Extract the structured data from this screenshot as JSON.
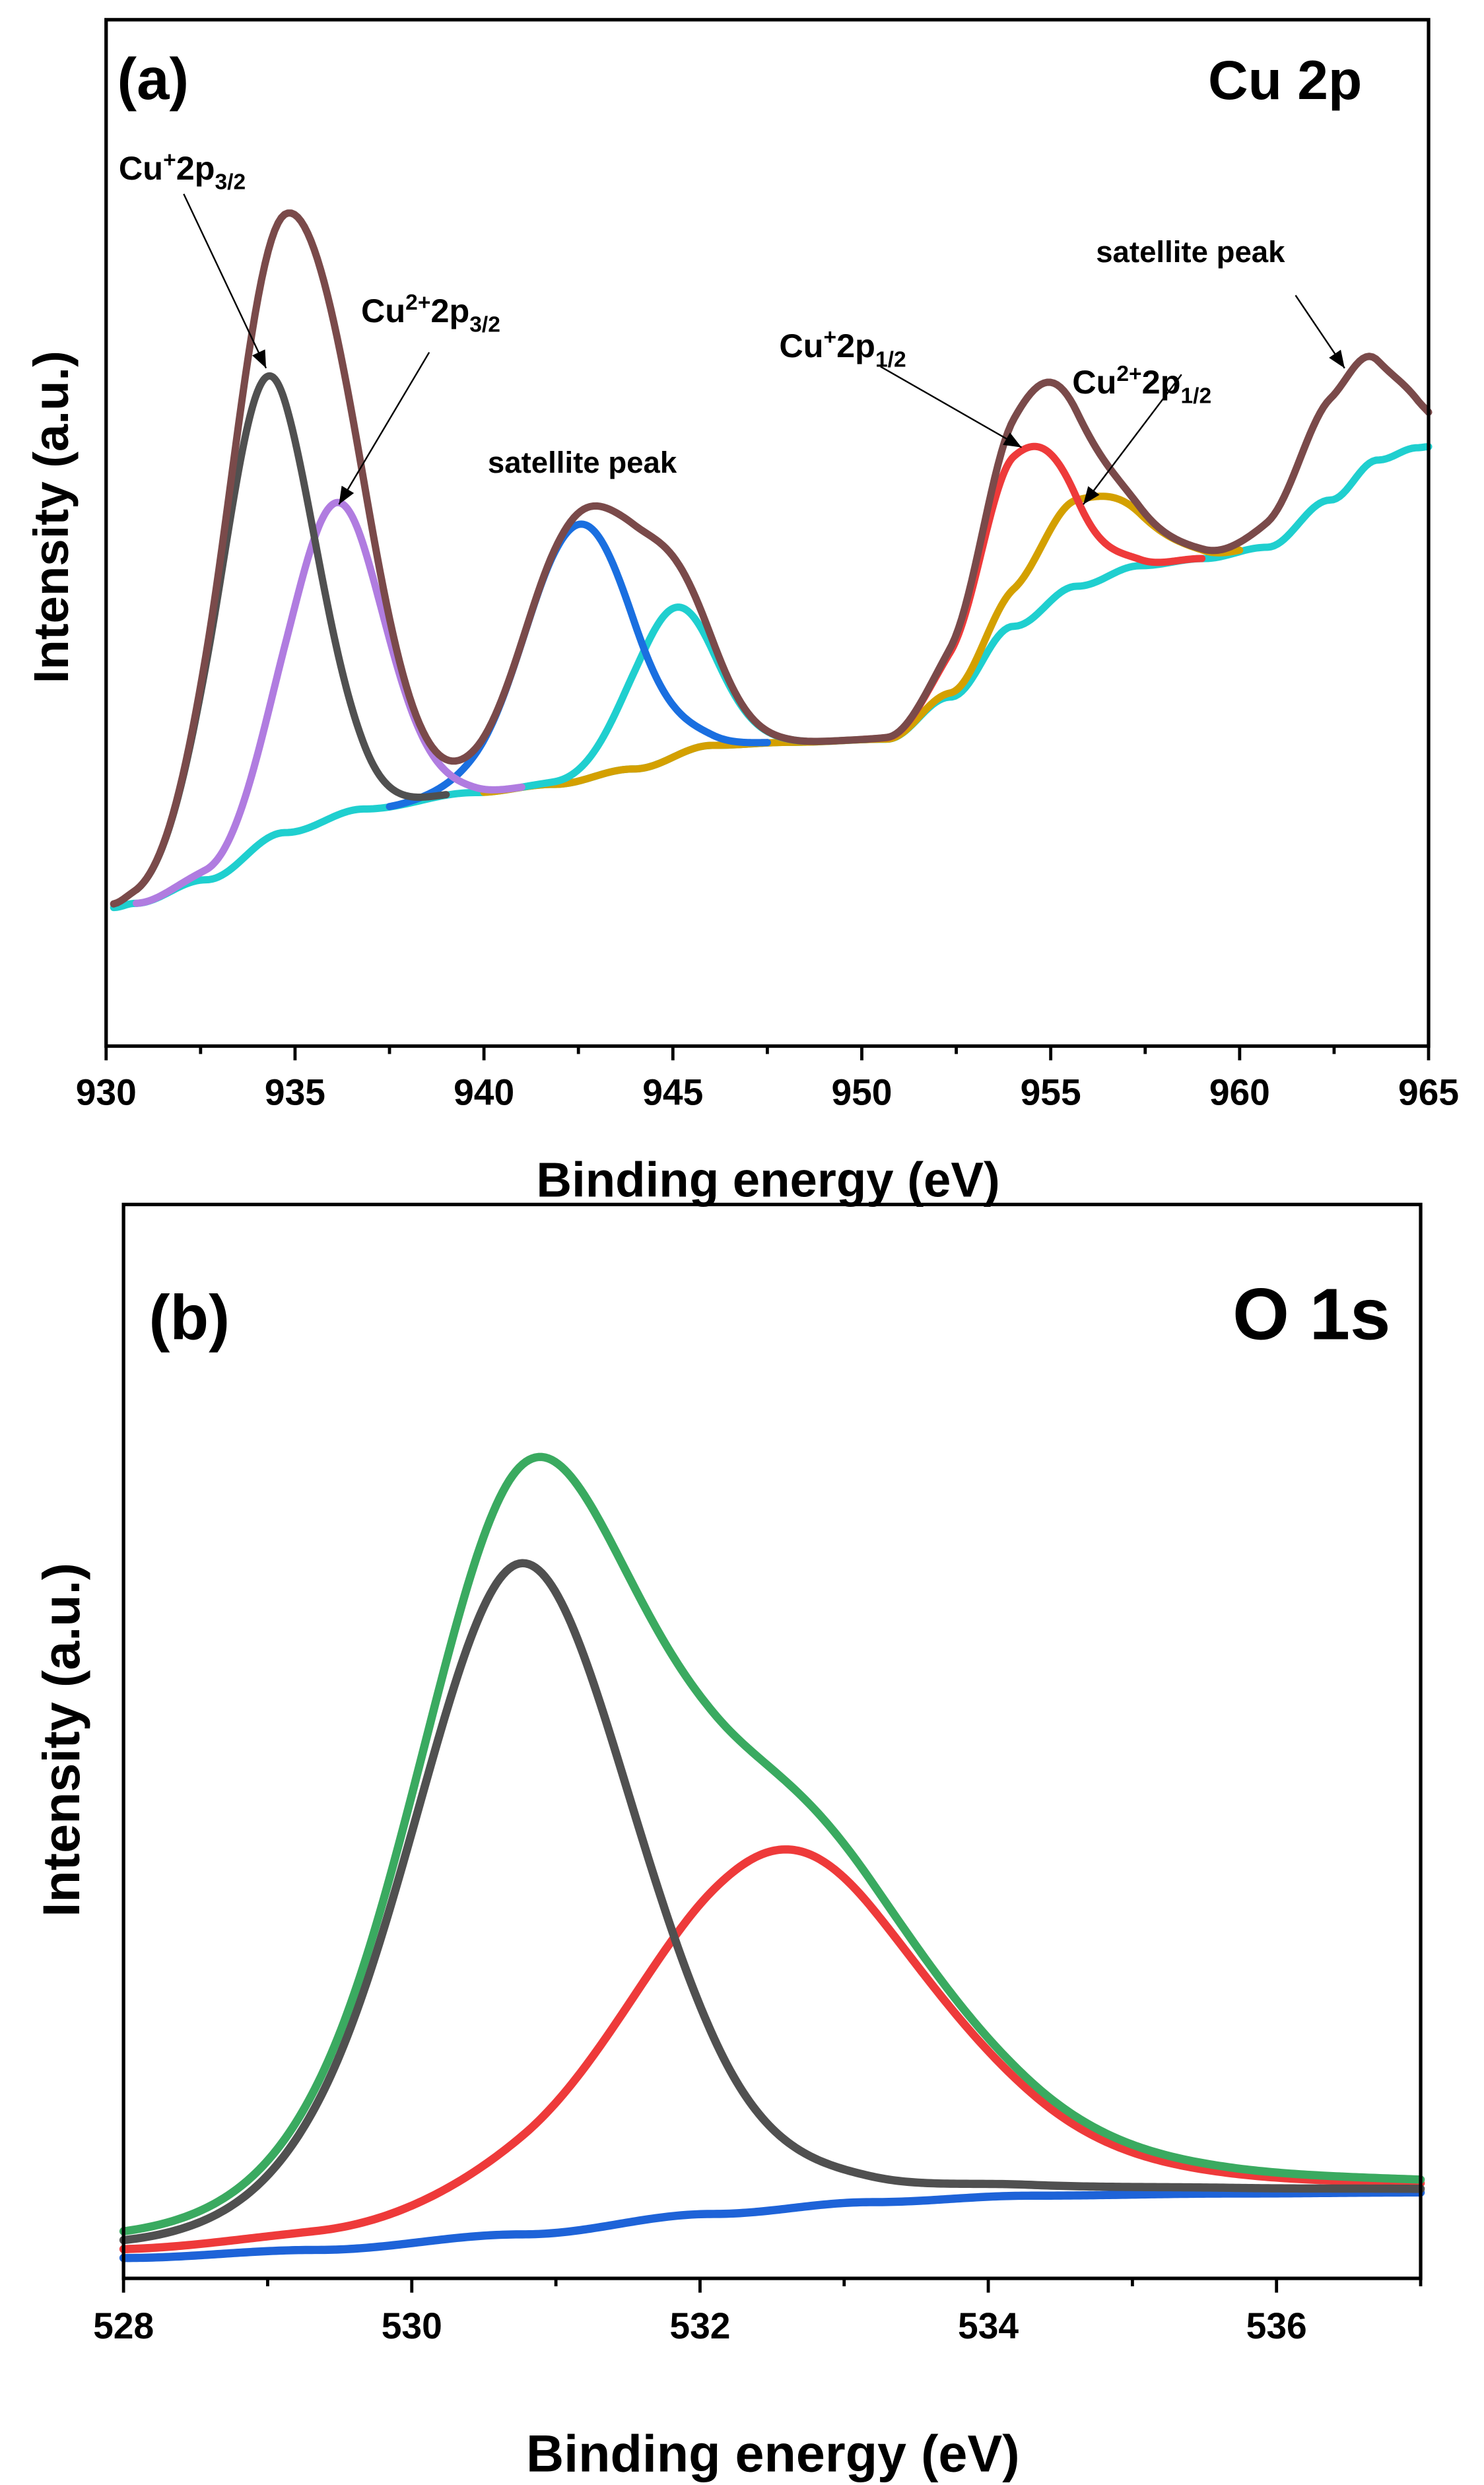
{
  "chart_data": [
    {
      "type": "line",
      "panel_label": "(a)",
      "title": "Cu 2p",
      "xlabel": "Binding energy (eV)",
      "ylabel": "Intensity (a.u.)",
      "xlim": [
        930,
        965
      ],
      "ylim": [
        0,
        100
      ],
      "xticks": [
        930,
        935,
        940,
        945,
        950,
        955,
        960,
        965
      ],
      "minor_step": 2.5,
      "grid": false,
      "baseline": {
        "color": "#1fcfcf",
        "x": [
          930.2,
          930.75,
          932.64,
          934.74,
          936.83,
          939.77,
          941.86,
          943.96,
          946.05,
          948.15,
          950.66,
          952.34,
          954.02,
          955.69,
          957.37,
          959.05,
          960.72,
          962.4,
          963.66,
          964.71,
          965
        ],
        "y": [
          13.5,
          13.9,
          16.2,
          20.8,
          23.1,
          24.7,
          25.5,
          27.0,
          29.3,
          29.6,
          29.9,
          34.0,
          40.9,
          44.8,
          46.8,
          47.5,
          48.6,
          53.2,
          57.1,
          58.3,
          58.4
        ]
      },
      "components": [
        {
          "name": "Cu2+ 2p1/2",
          "color": "#d4a000",
          "center": 955.9,
          "height": 8.5,
          "fwhm": 3.4,
          "lorentz": 0,
          "range": [
            940,
            960
          ]
        },
        {
          "name": "Cu+ 2p1/2",
          "color": "#ee3a3a",
          "center": 954.3,
          "height": 17,
          "fwhm": 2.8,
          "lorentz": 0,
          "range": [
            950,
            959
          ]
        },
        {
          "name": "satellite 945",
          "color": "#1fcfcf",
          "center": 945.0,
          "height": 14.5,
          "fwhm": 2.6,
          "lorentz": 0,
          "range": [
            941,
            948.5
          ]
        },
        {
          "name": "satellite 942.5",
          "color": "#1a6fe0",
          "center": 942.5,
          "height": 25,
          "fwhm": 3.3,
          "lorentz": 0,
          "range": [
            937.5,
            947.5
          ]
        },
        {
          "name": "Cu2+ 2p3/2",
          "color": "#b07ce0",
          "center": 936.05,
          "height": 30.5,
          "fwhm": 3.06,
          "lorentz": 0,
          "range": [
            930.8,
            941
          ]
        },
        {
          "name": "Cu+ 2p3/2",
          "color": "#505050",
          "center": 934.25,
          "height": 45,
          "fwhm": 3.06,
          "lorentz": 0,
          "range": [
            930.8,
            939
          ]
        },
        {
          "name": "satellite 963",
          "color": null,
          "center": 963.0,
          "height": 11,
          "fwhm": 3.06,
          "lorentz": 0,
          "range": null
        }
      ],
      "envelope": {
        "color": "#7a4a4a",
        "range": [
          930.2,
          965
        ]
      },
      "annotations": [
        {
          "base": "Cu",
          "sup": "+",
          "mid": "2p",
          "sub": "3/2"
        },
        {
          "base": "Cu",
          "sup": "2+",
          "mid": "2p",
          "sub": "3/2"
        },
        {
          "text": "satellite peak"
        },
        {
          "base": "Cu",
          "sup": "+",
          "mid": "2p",
          "sub": "1/2"
        },
        {
          "base": "Cu",
          "sup": "2+",
          "mid": "2p",
          "sub": "1/2"
        },
        {
          "text": "satellite peak"
        }
      ]
    },
    {
      "type": "line",
      "panel_label": "(b)",
      "title": "O 1s",
      "xlabel": "Binding energy (eV)",
      "ylabel": "Intensity (a.u.)",
      "xlim": [
        528,
        537
      ],
      "ylim": [
        0,
        100
      ],
      "xticks": [
        528,
        530,
        532,
        534,
        536
      ],
      "minor_step": 1,
      "grid": false,
      "baseline": {
        "color": "#1e63d8",
        "x": [
          528.0,
          529.34,
          530.77,
          532.09,
          533.19,
          534.29,
          535.71,
          537.0
        ],
        "y": [
          1.9,
          2.65,
          4.1,
          6.0,
          7.1,
          7.7,
          7.9,
          8.0
        ]
      },
      "components": [
        {
          "name": "component 532.5",
          "color": "#ee3a3a",
          "center": 532.55,
          "height": 33.5,
          "fwhm": 2.5,
          "lorentz": 0.35,
          "range": [
            528,
            537
          ]
        },
        {
          "name": "component 530.8",
          "color": "#505050",
          "center": 530.77,
          "height": 62.5,
          "fwhm": 1.85,
          "lorentz": 0.25,
          "range": [
            528,
            537
          ]
        }
      ],
      "envelope": {
        "color": "#3aaa60",
        "range": [
          528,
          537
        ]
      },
      "annotations": []
    }
  ]
}
